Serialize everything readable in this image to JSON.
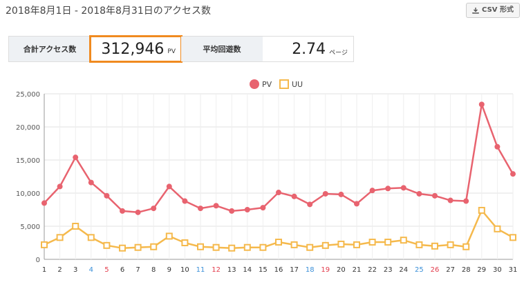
{
  "header": {
    "title": "2018年8月1日 - 2018年8月31日のアクセス数",
    "csv_label": "CSV 形式"
  },
  "stats": {
    "total_label": "合計アクセス数",
    "total_value": "312,946",
    "total_unit": "PV",
    "avg_label": "平均回遊数",
    "avg_value": "2.74",
    "avg_unit": "ページ"
  },
  "colors": {
    "pv": "#e8636f",
    "uu": "#f5b94c",
    "highlight": "#f08a1f",
    "saturday": "#3a8fd8",
    "sunday": "#e33b4b"
  },
  "chart_data": {
    "type": "line",
    "x": [
      1,
      2,
      3,
      4,
      5,
      6,
      7,
      8,
      9,
      10,
      11,
      12,
      13,
      14,
      15,
      16,
      17,
      18,
      19,
      20,
      21,
      22,
      23,
      24,
      25,
      26,
      27,
      28,
      29,
      30,
      31
    ],
    "x_tick_colors": [
      "",
      "",
      "",
      "saturday",
      "sunday",
      "",
      "",
      "",
      "",
      "",
      "saturday",
      "sunday",
      "",
      "",
      "",
      "",
      "",
      "saturday",
      "sunday",
      "",
      "",
      "",
      "",
      "",
      "saturday",
      "sunday",
      "",
      "",
      "",
      "",
      ""
    ],
    "ylim": [
      0,
      25000
    ],
    "yticks": [
      0,
      5000,
      10000,
      15000,
      20000,
      25000
    ],
    "ytick_labels": [
      "0",
      "5,000",
      "10,000",
      "15,000",
      "20,000",
      "25,000"
    ],
    "grid": true,
    "legend_position": "top",
    "series": [
      {
        "name": "PV",
        "values": [
          8500,
          11000,
          15400,
          11600,
          9600,
          7300,
          7100,
          7700,
          11000,
          8800,
          7700,
          8100,
          7300,
          7500,
          7800,
          10100,
          9500,
          8300,
          9900,
          9800,
          8400,
          10400,
          10700,
          10800,
          9900,
          9600,
          8900,
          8800,
          23400,
          17000,
          12900
        ]
      },
      {
        "name": "UU",
        "values": [
          2200,
          3300,
          5000,
          3300,
          2100,
          1700,
          1800,
          1900,
          3500,
          2500,
          1900,
          1800,
          1700,
          1800,
          1800,
          2600,
          2200,
          1800,
          2100,
          2300,
          2200,
          2600,
          2600,
          2900,
          2200,
          2000,
          2200,
          1900,
          7400,
          4600,
          3300
        ]
      }
    ]
  }
}
